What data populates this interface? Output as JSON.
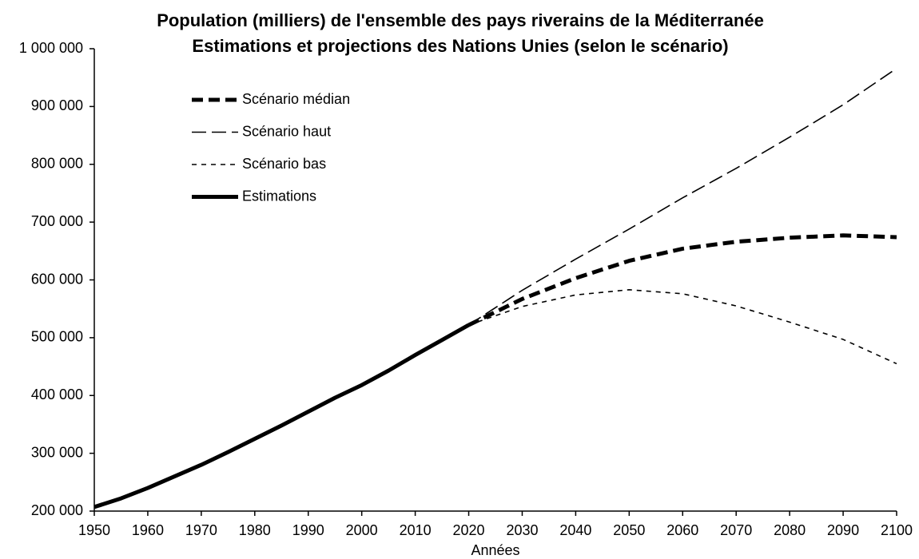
{
  "chart_data": {
    "type": "line",
    "title": "Population (milliers) de l'ensemble des pays riverains de la Méditerranée",
    "subtitle": "Estimations et projections des Nations Unies (selon le scénario)",
    "x_label": "Années",
    "xlim": [
      1950,
      2100
    ],
    "xticks": [
      1950,
      1960,
      1970,
      1980,
      1990,
      2000,
      2010,
      2020,
      2030,
      2040,
      2050,
      2060,
      2070,
      2080,
      2090,
      2100
    ],
    "ylim": [
      200000,
      1000000
    ],
    "yticks": [
      {
        "value": 200000,
        "label": "200 000"
      },
      {
        "value": 300000,
        "label": "300 000"
      },
      {
        "value": 400000,
        "label": "400 000"
      },
      {
        "value": 500000,
        "label": "500 000"
      },
      {
        "value": 600000,
        "label": "600 000"
      },
      {
        "value": 700000,
        "label": "700 000"
      },
      {
        "value": 800000,
        "label": "800 000"
      },
      {
        "value": 900000,
        "label": "900 000"
      },
      {
        "value": 1000000,
        "label": "1 000 000"
      }
    ],
    "grid": false,
    "legend": "upper left",
    "series": [
      {
        "name": "Scénario médian",
        "color": "#000000",
        "line_style": "bold-dashed",
        "x": [
          2020,
          2030,
          2040,
          2050,
          2060,
          2070,
          2080,
          2090,
          2100
        ],
        "values": [
          522000,
          567000,
          603000,
          633000,
          654000,
          666000,
          673000,
          677000,
          674000
        ]
      },
      {
        "name": "Scénario haut",
        "color": "#000000",
        "line_style": "long-dashed",
        "x": [
          2020,
          2030,
          2040,
          2050,
          2060,
          2070,
          2080,
          2090,
          2100
        ],
        "values": [
          522000,
          582000,
          636000,
          688000,
          742000,
          793000,
          847000,
          903000,
          966000
        ]
      },
      {
        "name": "Scénario bas",
        "color": "#000000",
        "line_style": "short-dashed",
        "x": [
          2020,
          2030,
          2040,
          2050,
          2060,
          2070,
          2080,
          2090,
          2100
        ],
        "values": [
          522000,
          554000,
          574000,
          583000,
          576000,
          555000,
          527000,
          497000,
          455000
        ]
      },
      {
        "name": "Estimations",
        "color": "#000000",
        "line_style": "bold-solid",
        "x": [
          1950,
          1955,
          1960,
          1965,
          1970,
          1975,
          1980,
          1985,
          1990,
          1995,
          2000,
          2005,
          2010,
          2015,
          2020
        ],
        "values": [
          207000,
          222000,
          240000,
          260000,
          280000,
          302000,
          325000,
          348000,
          372000,
          396000,
          418000,
          443000,
          470000,
          496000,
          522000
        ]
      }
    ]
  }
}
